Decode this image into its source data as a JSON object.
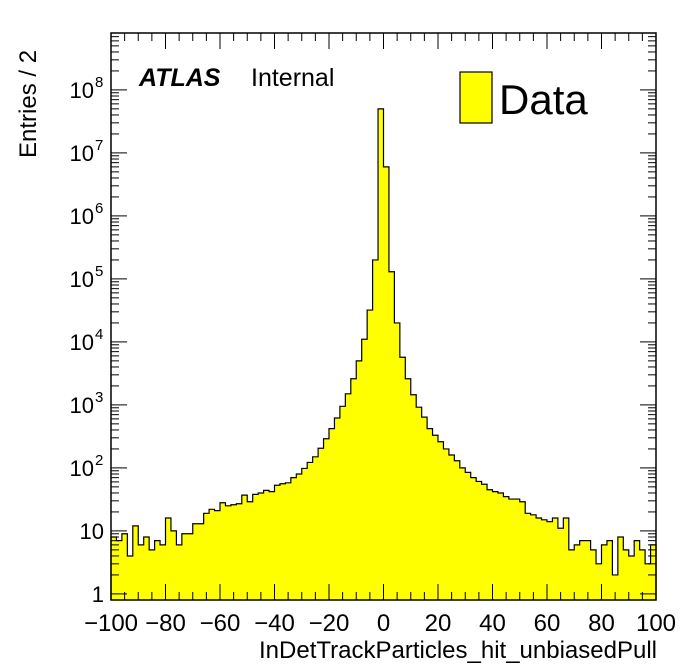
{
  "chart_data": {
    "type": "bar",
    "style": "histogram",
    "title": "",
    "xlabel": "InDetTrackParticles_hit_unbiasedPull",
    "ylabel": "Entries / 2",
    "xlim": [
      -100,
      100
    ],
    "ylim": [
      0.8,
      800000000
    ],
    "yscale": "log",
    "bin_width": 2,
    "x_ticks": [
      "−100",
      "−80",
      "−60",
      "−40",
      "−20",
      "0",
      "20",
      "40",
      "60",
      "80",
      "100"
    ],
    "y_ticks": [
      {
        "base": "1",
        "exp": ""
      },
      {
        "base": "10",
        "exp": ""
      },
      {
        "base": "10",
        "exp": "2"
      },
      {
        "base": "10",
        "exp": "3"
      },
      {
        "base": "10",
        "exp": "4"
      },
      {
        "base": "10",
        "exp": "5"
      },
      {
        "base": "10",
        "exp": "6"
      },
      {
        "base": "10",
        "exp": "7"
      },
      {
        "base": "10",
        "exp": "8"
      }
    ],
    "label_atlas": "ATLAS",
    "label_internal": "Internal",
    "legend": {
      "entry": "Data",
      "placement": "top-right"
    },
    "colors": {
      "fill": "#ffff00",
      "edge": "#000000"
    },
    "series": [
      {
        "name": "Data",
        "bin_low_edges": [
          -100,
          -98,
          -96,
          -94,
          -92,
          -90,
          -88,
          -86,
          -84,
          -82,
          -80,
          -78,
          -76,
          -74,
          -72,
          -70,
          -68,
          -66,
          -64,
          -62,
          -60,
          -58,
          -56,
          -54,
          -52,
          -50,
          -48,
          -46,
          -44,
          -42,
          -40,
          -38,
          -36,
          -34,
          -32,
          -30,
          -28,
          -26,
          -24,
          -22,
          -20,
          -18,
          -16,
          -14,
          -12,
          -10,
          -8,
          -6,
          -4,
          -2,
          0,
          2,
          4,
          6,
          8,
          10,
          12,
          14,
          16,
          18,
          20,
          22,
          24,
          26,
          28,
          30,
          32,
          34,
          36,
          38,
          40,
          42,
          44,
          46,
          48,
          50,
          52,
          54,
          56,
          58,
          60,
          62,
          64,
          66,
          68,
          70,
          72,
          74,
          76,
          78,
          80,
          82,
          84,
          86,
          88,
          90,
          92,
          94,
          96,
          98
        ],
        "values": [
          8,
          7,
          9,
          4,
          12,
          6,
          8,
          5,
          7,
          6,
          16,
          10,
          6,
          9,
          9,
          13,
          13,
          19,
          22,
          21,
          28,
          25,
          26,
          27,
          37,
          29,
          38,
          40,
          44,
          42,
          53,
          56,
          58,
          70,
          80,
          98,
          122,
          150,
          205,
          290,
          420,
          620,
          950,
          1500,
          2600,
          5000,
          11000,
          32000,
          200000,
          50000000,
          6000000,
          130000,
          20000,
          5700,
          2600,
          1450,
          920,
          640,
          420,
          330,
          260,
          200,
          160,
          130,
          100,
          85,
          70,
          61,
          55,
          45,
          42,
          40,
          35,
          32,
          32,
          29,
          19,
          18,
          16,
          15,
          14,
          16,
          11,
          16,
          5,
          6,
          7,
          7,
          5,
          3,
          6,
          7,
          2,
          8,
          5,
          4,
          7,
          5,
          3,
          6
        ]
      }
    ]
  }
}
